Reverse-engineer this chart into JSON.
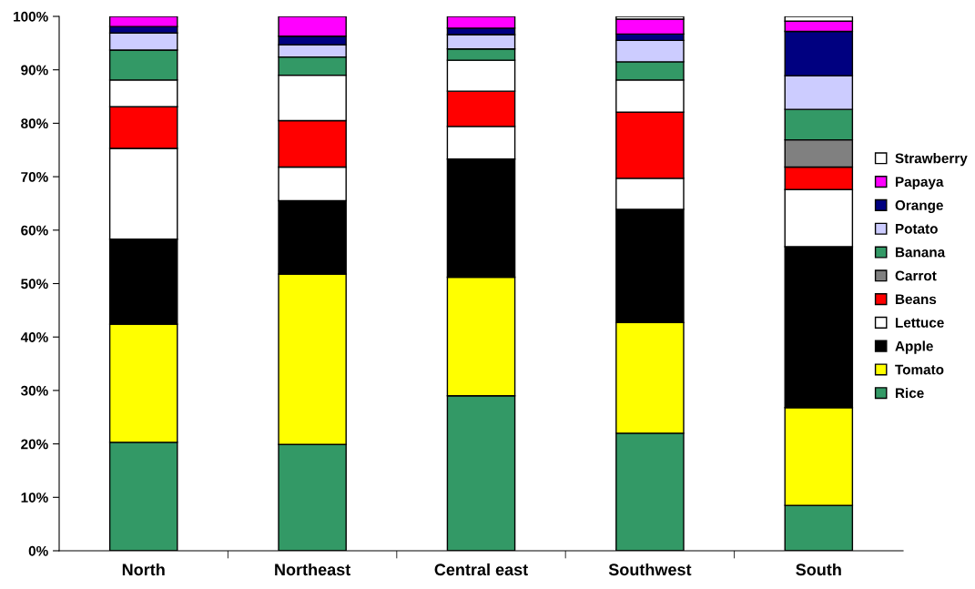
{
  "chart_data": {
    "type": "bar",
    "stacked": true,
    "categories": [
      "North",
      "Northeast",
      "Central east",
      "Southwest",
      "South"
    ],
    "series": [
      {
        "name": "Rice",
        "color": "#339966",
        "values": [
          20.3,
          19.9,
          29.0,
          22.0,
          8.5
        ]
      },
      {
        "name": "Tomato",
        "color": "#ffff00",
        "values": [
          22.1,
          31.9,
          22.2,
          20.7,
          18.3
        ]
      },
      {
        "name": "Apple",
        "color": "#000000",
        "values": [
          15.9,
          13.7,
          22.1,
          21.2,
          30.1
        ]
      },
      {
        "name": "Lettuce",
        "color": "#ffffff",
        "values": [
          17.0,
          6.3,
          6.1,
          5.8,
          10.7
        ]
      },
      {
        "name": "Beans",
        "color": "#ff0000",
        "values": [
          7.8,
          8.7,
          6.6,
          12.4,
          4.2
        ]
      },
      {
        "name": "Carrot",
        "color": "#808080",
        "colors": [
          "#ffffff",
          "#ffffff",
          "#ffffff",
          "#ffffff",
          "#808080"
        ],
        "values": [
          5.0,
          8.5,
          5.8,
          6.0,
          5.1
        ]
      },
      {
        "name": "Banana",
        "color": "#339966",
        "values": [
          5.6,
          3.4,
          2.1,
          3.4,
          5.7
        ]
      },
      {
        "name": "Potato",
        "color": "#ccccff",
        "values": [
          3.2,
          2.3,
          2.7,
          4.0,
          6.3
        ]
      },
      {
        "name": "Orange",
        "color": "#000080",
        "values": [
          1.2,
          1.6,
          1.2,
          1.2,
          8.3
        ]
      },
      {
        "name": "Papaya",
        "color": "#ff00ff",
        "values": [
          1.9,
          3.7,
          2.2,
          2.8,
          1.9
        ]
      },
      {
        "name": "Strawberry",
        "color": "#ffffff",
        "values": [
          null,
          null,
          null,
          0.5,
          0.9
        ]
      }
    ],
    "ylim": [
      0,
      100
    ],
    "yticks": [
      {
        "value": 0,
        "label": "0%"
      },
      {
        "value": 10,
        "label": "10%"
      },
      {
        "value": 20,
        "label": "20%"
      },
      {
        "value": 30,
        "label": "30%"
      },
      {
        "value": 40,
        "label": "40%"
      },
      {
        "value": 50,
        "label": "50%"
      },
      {
        "value": 60,
        "label": "60%"
      },
      {
        "value": 70,
        "label": "70%"
      },
      {
        "value": 80,
        "label": "80%"
      },
      {
        "value": 90,
        "label": "90%"
      },
      {
        "value": 100,
        "label": "100%"
      }
    ],
    "grid": false,
    "legend": "right"
  }
}
